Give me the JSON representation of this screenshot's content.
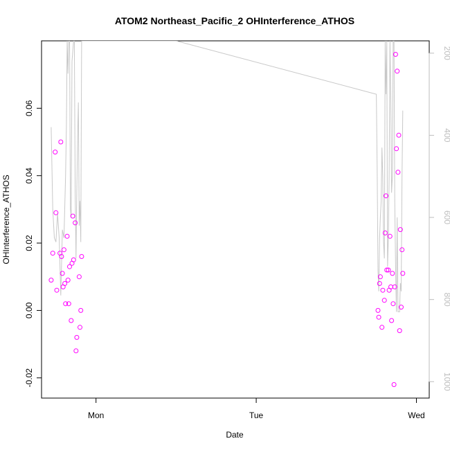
{
  "chart_data": {
    "type": "scatter",
    "title": "ATOM2 Northeast_Pacific_2 OHInterference_ATHOS",
    "xlabel": "Date",
    "ylabel": "OHInterference_ATHOS",
    "x_ticks": [
      {
        "label": "Mon",
        "value": 1.0
      },
      {
        "label": "Tue",
        "value": 2.0
      },
      {
        "label": "Wed",
        "value": 3.0
      }
    ],
    "xlim": [
      0.66,
      3.08
    ],
    "ylim": [
      -0.026,
      0.08
    ],
    "y_ticks": [
      {
        "label": "-0.02",
        "value": -0.02
      },
      {
        "label": "0.00",
        "value": 0.0
      },
      {
        "label": "0.02",
        "value": 0.02
      },
      {
        "label": "0.04",
        "value": 0.04
      },
      {
        "label": "0.06",
        "value": 0.06
      }
    ],
    "y2_ticks": [
      {
        "label": "200",
        "value": 200
      },
      {
        "label": "400",
        "value": 400
      },
      {
        "label": "600",
        "value": 600
      },
      {
        "label": "800",
        "value": 800
      },
      {
        "label": "1000",
        "value": 1000
      }
    ],
    "y2lim": [
      1040,
      170
    ],
    "y2_reversed": true,
    "colors": {
      "points": "#ff00ff",
      "line": "#c8c8c8",
      "axis": "#000000",
      "right_axis": "#bdbdbd"
    },
    "series": [
      {
        "marker": "circle-open",
        "color": "#ff00ff",
        "points": [
          [
            0.72,
            0.009
          ],
          [
            0.73,
            0.017
          ],
          [
            0.745,
            0.047
          ],
          [
            0.75,
            0.029
          ],
          [
            0.755,
            0.006
          ],
          [
            0.775,
            0.017
          ],
          [
            0.78,
            0.05
          ],
          [
            0.785,
            0.016
          ],
          [
            0.79,
            0.011
          ],
          [
            0.795,
            0.007
          ],
          [
            0.8,
            0.018
          ],
          [
            0.805,
            0.008
          ],
          [
            0.81,
            0.002
          ],
          [
            0.82,
            0.022
          ],
          [
            0.825,
            0.009
          ],
          [
            0.83,
            0.002
          ],
          [
            0.835,
            0.013
          ],
          [
            0.845,
            -0.003
          ],
          [
            0.85,
            0.014
          ],
          [
            0.855,
            0.028
          ],
          [
            0.86,
            0.015
          ],
          [
            0.87,
            0.026
          ],
          [
            0.875,
            -0.012
          ],
          [
            0.88,
            -0.008
          ],
          [
            0.895,
            0.01
          ],
          [
            0.9,
            -0.005
          ],
          [
            0.905,
            0.0
          ],
          [
            0.91,
            0.016
          ],
          [
            2.76,
            0.0
          ],
          [
            2.765,
            -0.002
          ],
          [
            2.77,
            0.008
          ],
          [
            2.775,
            0.01
          ],
          [
            2.785,
            -0.005
          ],
          [
            2.79,
            0.006
          ],
          [
            2.8,
            0.003
          ],
          [
            2.805,
            0.023
          ],
          [
            2.81,
            0.034
          ],
          [
            2.815,
            0.012
          ],
          [
            2.825,
            0.012
          ],
          [
            2.83,
            0.006
          ],
          [
            2.835,
            0.022
          ],
          [
            2.84,
            0.007
          ],
          [
            2.845,
            -0.003
          ],
          [
            2.85,
            0.011
          ],
          [
            2.855,
            0.002
          ],
          [
            2.86,
            -0.022
          ],
          [
            2.865,
            0.007
          ],
          [
            2.87,
            0.076
          ],
          [
            2.875,
            0.048
          ],
          [
            2.88,
            0.071
          ],
          [
            2.885,
            0.041
          ],
          [
            2.89,
            0.052
          ],
          [
            2.895,
            -0.006
          ],
          [
            2.9,
            0.024
          ],
          [
            2.905,
            0.001
          ],
          [
            2.91,
            0.018
          ],
          [
            2.915,
            0.011
          ]
        ]
      },
      {
        "line": true,
        "color": "#c8c8c8",
        "axis": "right",
        "points": [
          [
            0.72,
            380
          ],
          [
            0.73,
            580
          ],
          [
            0.74,
            650
          ],
          [
            0.75,
            660
          ],
          [
            0.76,
            590
          ],
          [
            0.77,
            650
          ],
          [
            0.78,
            790
          ],
          [
            0.79,
            630
          ],
          [
            0.8,
            650
          ],
          [
            0.81,
            500
          ],
          [
            0.815,
            380
          ],
          [
            0.82,
            170
          ],
          [
            0.825,
            250
          ],
          [
            0.83,
            170
          ],
          [
            0.835,
            170
          ],
          [
            0.84,
            580
          ],
          [
            0.845,
            600
          ],
          [
            0.85,
            220
          ],
          [
            0.86,
            170
          ],
          [
            0.865,
            170
          ],
          [
            0.87,
            540
          ],
          [
            0.875,
            700
          ],
          [
            0.88,
            540
          ],
          [
            0.885,
            400
          ],
          [
            0.89,
            320
          ],
          [
            0.895,
            620
          ],
          [
            0.9,
            560
          ],
          [
            0.905,
            660
          ],
          [
            0.91,
            170
          ],
          [
            0.915,
            170
          ],
          [
            1.5,
            170
          ],
          [
            2.75,
            300
          ],
          [
            2.755,
            480
          ],
          [
            2.76,
            730
          ],
          [
            2.765,
            780
          ],
          [
            2.77,
            650
          ],
          [
            2.775,
            600
          ],
          [
            2.78,
            560
          ],
          [
            2.785,
            430
          ],
          [
            2.79,
            500
          ],
          [
            2.795,
            660
          ],
          [
            2.8,
            700
          ],
          [
            2.805,
            170
          ],
          [
            2.81,
            300
          ],
          [
            2.815,
            170
          ],
          [
            2.82,
            720
          ],
          [
            2.825,
            650
          ],
          [
            2.83,
            500
          ],
          [
            2.835,
            170
          ],
          [
            2.84,
            300
          ],
          [
            2.845,
            540
          ],
          [
            2.85,
            500
          ],
          [
            2.855,
            170
          ],
          [
            2.86,
            170
          ],
          [
            2.865,
            560
          ],
          [
            2.87,
            720
          ],
          [
            2.875,
            830
          ],
          [
            2.88,
            600
          ],
          [
            2.885,
            830
          ],
          [
            2.89,
            830
          ],
          [
            2.895,
            830
          ],
          [
            2.9,
            760
          ],
          [
            2.905,
            780
          ],
          [
            2.91,
            500
          ],
          [
            2.915,
            340
          ]
        ]
      }
    ]
  }
}
